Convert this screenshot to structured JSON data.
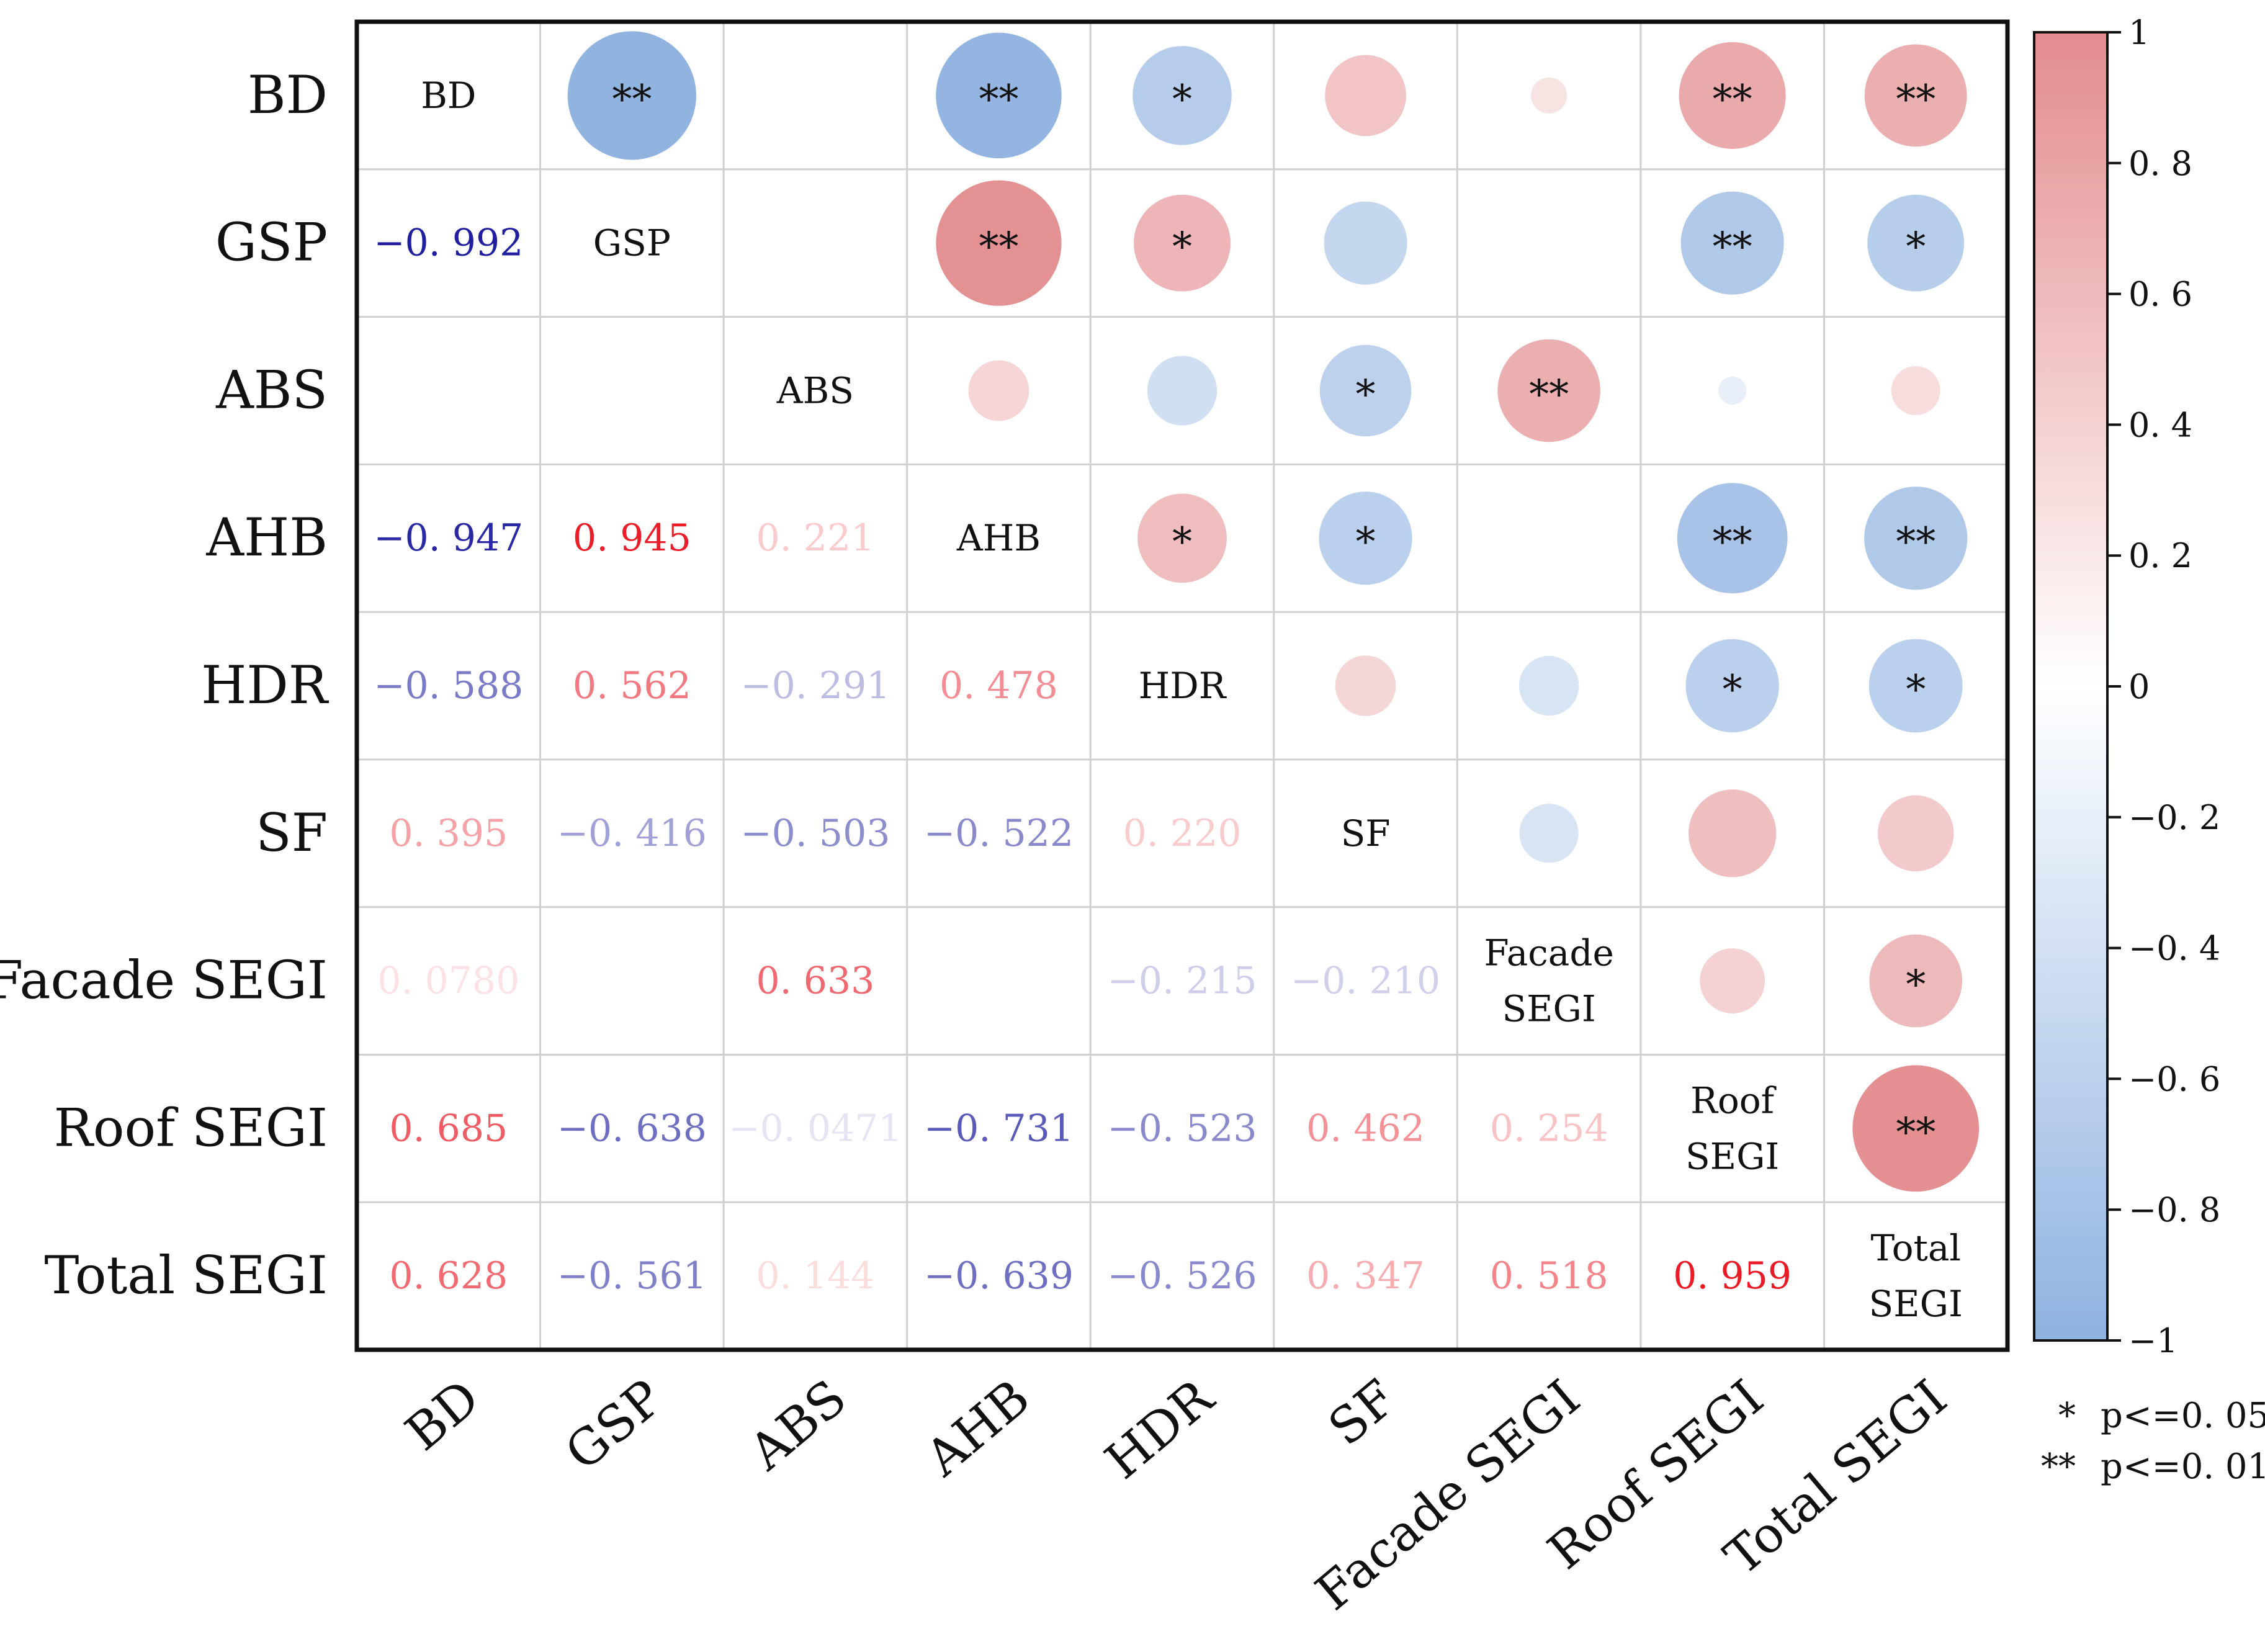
{
  "chart_data": {
    "type": "heatmap",
    "style": "correlation-matrix: lower triangle numeric coefficients, upper triangle circles sized by |r|",
    "variables": [
      "BD",
      "GSP",
      "ABS",
      "AHB",
      "HDR",
      "SF",
      "Facade SEGI",
      "Roof SEGI",
      "Total SEGI"
    ],
    "diagonal_labels": [
      "BD",
      "GSP",
      "ABS",
      "AHB",
      "HDR",
      "SF",
      "Facade\nSEGI",
      "Roof\nSEGI",
      "Total\nSEGI"
    ],
    "lower_triangle": [
      {
        "row": "GSP",
        "col": "BD",
        "value": -0.992,
        "label": "−0. 992"
      },
      {
        "row": "AHB",
        "col": "BD",
        "value": -0.947,
        "label": "−0. 947"
      },
      {
        "row": "AHB",
        "col": "GSP",
        "value": 0.945,
        "label": "0. 945"
      },
      {
        "row": "AHB",
        "col": "ABS",
        "value": 0.221,
        "label": "0. 221"
      },
      {
        "row": "HDR",
        "col": "BD",
        "value": -0.588,
        "label": "−0. 588"
      },
      {
        "row": "HDR",
        "col": "GSP",
        "value": 0.562,
        "label": "0. 562"
      },
      {
        "row": "HDR",
        "col": "ABS",
        "value": -0.291,
        "label": "−0. 291"
      },
      {
        "row": "HDR",
        "col": "AHB",
        "value": 0.478,
        "label": "0. 478"
      },
      {
        "row": "SF",
        "col": "BD",
        "value": 0.395,
        "label": "0. 395"
      },
      {
        "row": "SF",
        "col": "GSP",
        "value": -0.416,
        "label": "−0. 416"
      },
      {
        "row": "SF",
        "col": "ABS",
        "value": -0.503,
        "label": "−0. 503"
      },
      {
        "row": "SF",
        "col": "AHB",
        "value": -0.522,
        "label": "−0. 522"
      },
      {
        "row": "SF",
        "col": "HDR",
        "value": 0.22,
        "label": "0. 220"
      },
      {
        "row": "Facade SEGI",
        "col": "BD",
        "value": 0.078,
        "label": "0. 0780"
      },
      {
        "row": "Facade SEGI",
        "col": "ABS",
        "value": 0.633,
        "label": "0. 633"
      },
      {
        "row": "Facade SEGI",
        "col": "HDR",
        "value": -0.215,
        "label": "−0. 215"
      },
      {
        "row": "Facade SEGI",
        "col": "SF",
        "value": -0.21,
        "label": "−0. 210"
      },
      {
        "row": "Roof SEGI",
        "col": "BD",
        "value": 0.685,
        "label": "0. 685"
      },
      {
        "row": "Roof SEGI",
        "col": "GSP",
        "value": -0.638,
        "label": "−0. 638"
      },
      {
        "row": "Roof SEGI",
        "col": "ABS",
        "value": -0.0471,
        "label": "−0. 0471"
      },
      {
        "row": "Roof SEGI",
        "col": "AHB",
        "value": -0.731,
        "label": "−0. 731"
      },
      {
        "row": "Roof SEGI",
        "col": "HDR",
        "value": -0.523,
        "label": "−0. 523"
      },
      {
        "row": "Roof SEGI",
        "col": "SF",
        "value": 0.462,
        "label": "0. 462"
      },
      {
        "row": "Roof SEGI",
        "col": "Facade SEGI",
        "value": 0.254,
        "label": "0. 254"
      },
      {
        "row": "Total SEGI",
        "col": "BD",
        "value": 0.628,
        "label": "0. 628"
      },
      {
        "row": "Total SEGI",
        "col": "GSP",
        "value": -0.561,
        "label": "−0. 561"
      },
      {
        "row": "Total SEGI",
        "col": "ABS",
        "value": 0.144,
        "label": "0. 144"
      },
      {
        "row": "Total SEGI",
        "col": "AHB",
        "value": -0.639,
        "label": "−0. 639"
      },
      {
        "row": "Total SEGI",
        "col": "HDR",
        "value": -0.526,
        "label": "−0. 526"
      },
      {
        "row": "Total SEGI",
        "col": "SF",
        "value": 0.347,
        "label": "0. 347"
      },
      {
        "row": "Total SEGI",
        "col": "Facade SEGI",
        "value": 0.518,
        "label": "0. 518"
      },
      {
        "row": "Total SEGI",
        "col": "Roof SEGI",
        "value": 0.959,
        "label": "0. 959"
      }
    ],
    "upper_triangle_significance": [
      {
        "row": "BD",
        "col": "GSP",
        "stars": "**"
      },
      {
        "row": "BD",
        "col": "AHB",
        "stars": "**"
      },
      {
        "row": "BD",
        "col": "HDR",
        "stars": "*"
      },
      {
        "row": "BD",
        "col": "Roof SEGI",
        "stars": "**"
      },
      {
        "row": "BD",
        "col": "Total SEGI",
        "stars": "**"
      },
      {
        "row": "GSP",
        "col": "AHB",
        "stars": "**"
      },
      {
        "row": "GSP",
        "col": "HDR",
        "stars": "*"
      },
      {
        "row": "GSP",
        "col": "Roof SEGI",
        "stars": "**"
      },
      {
        "row": "GSP",
        "col": "Total SEGI",
        "stars": "*"
      },
      {
        "row": "ABS",
        "col": "SF",
        "stars": "*"
      },
      {
        "row": "ABS",
        "col": "Facade SEGI",
        "stars": "**"
      },
      {
        "row": "AHB",
        "col": "HDR",
        "stars": "*"
      },
      {
        "row": "AHB",
        "col": "SF",
        "stars": "*"
      },
      {
        "row": "AHB",
        "col": "Roof SEGI",
        "stars": "**"
      },
      {
        "row": "AHB",
        "col": "Total SEGI",
        "stars": "**"
      },
      {
        "row": "HDR",
        "col": "Roof SEGI",
        "stars": "*"
      },
      {
        "row": "HDR",
        "col": "Total SEGI",
        "stars": "*"
      },
      {
        "row": "Facade SEGI",
        "col": "Total SEGI",
        "stars": "*"
      },
      {
        "row": "Roof SEGI",
        "col": "Total SEGI",
        "stars": "**"
      }
    ],
    "colorbar": {
      "range": [
        -1,
        1
      ],
      "ticks": [
        1,
        0.8,
        0.6,
        0.4,
        0.2,
        0,
        -0.2,
        -0.4,
        -0.6,
        -0.8,
        -1
      ],
      "tick_labels": [
        "1",
        "0. 8",
        "0. 6",
        "0. 4",
        "0. 2",
        "0",
        "−0. 2",
        "−0. 4",
        "−0. 6",
        "−0. 8",
        "−1"
      ],
      "positive_color": "#e38c8e",
      "negative_color": "#8fb2e0"
    },
    "significance_legend": [
      {
        "symbol": "*",
        "label": "p<=0. 05"
      },
      {
        "symbol": "**",
        "label": "p<=0. 01"
      }
    ]
  },
  "colors": {
    "text_positive_strong": "#e8111d",
    "text_negative_strong": "#1d1d9e",
    "grid": "#d0d0d0",
    "frame": "#111111"
  }
}
